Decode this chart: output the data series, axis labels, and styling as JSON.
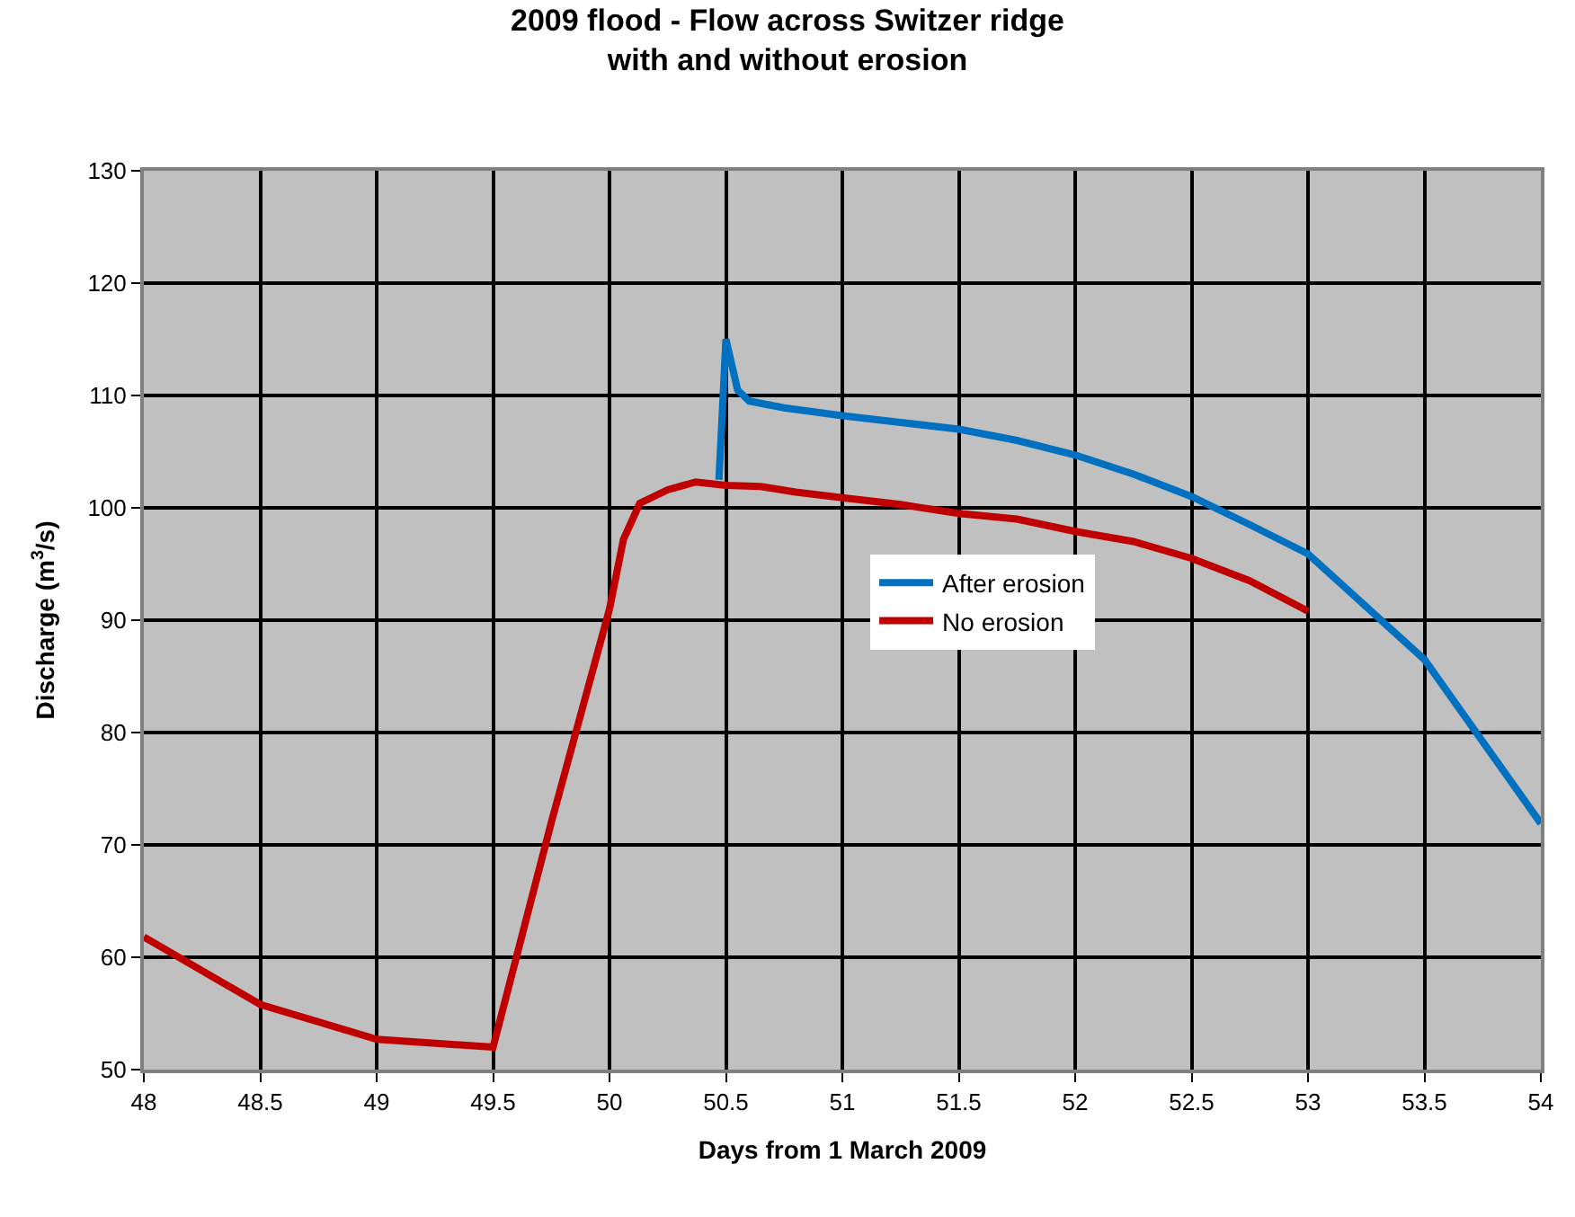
{
  "chart_data": {
    "type": "line",
    "title": "2009 flood - Flow across Switzer ridge\nwith and without erosion",
    "xlabel": "Days from 1 March 2009",
    "ylabel": "Discharge (m$^{3}$/s)",
    "xlim": [
      48,
      54
    ],
    "xticks": [
      48,
      48.5,
      49,
      49.5,
      50,
      50.5,
      51,
      51.5,
      52,
      52.5,
      53,
      53.5,
      54
    ],
    "ylim": [
      50,
      130
    ],
    "yticks": [
      50,
      60,
      70,
      80,
      90,
      100,
      110,
      120,
      130
    ],
    "grid": true,
    "legend": "right",
    "line_style": "solid",
    "marker": "none",
    "series": [
      {
        "name": "After erosion",
        "color": "#0070c0",
        "x": [
          50.47,
          50.5,
          50.55,
          50.6,
          50.75,
          51,
          51.25,
          51.5,
          51.75,
          52,
          52.25,
          52.5,
          52.75,
          53,
          53.5,
          54
        ],
        "values": [
          102.5,
          115,
          110.5,
          109.5,
          108.9,
          108.2,
          107.6,
          107,
          106,
          104.7,
          103,
          101,
          98.5,
          95.9,
          86.5,
          71.9
        ]
      },
      {
        "name": "No erosion",
        "color": "#c00000",
        "x": [
          48,
          48.5,
          49,
          49.5,
          49.75,
          50,
          50.06,
          50.13,
          50.25,
          50.37,
          50.5,
          50.65,
          50.8,
          51,
          51.25,
          51.5,
          51.75,
          52,
          52.25,
          52.5,
          52.75,
          53
        ],
        "values": [
          61.8,
          55.8,
          52.7,
          52,
          72,
          91,
          97.2,
          100.4,
          101.6,
          102.3,
          102,
          101.9,
          101.4,
          100.9,
          100.3,
          99.5,
          99,
          97.9,
          97,
          95.5,
          93.5,
          90.8
        ]
      }
    ]
  }
}
